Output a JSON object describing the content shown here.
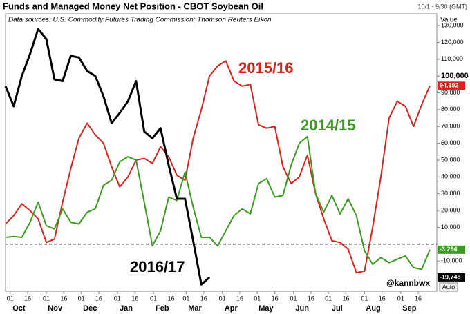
{
  "chart_data": {
    "type": "line",
    "title": "Funds and Managed Money Net Position - CBOT Soybean Oil",
    "subtitle": "Data sources: U.S. Commodity Futures Trading Commission; Thomson Reuters Eikon",
    "date_range": "10/1 - 9/30 (GMT)",
    "y_axis_label": "Value",
    "credit": "@kannbwx",
    "scale_button": "Auto",
    "x": [
      -4,
      3,
      10,
      17,
      24,
      31,
      38,
      45,
      52,
      59,
      66,
      73,
      80,
      87,
      94,
      101,
      108,
      115,
      122,
      129,
      136,
      143,
      150,
      157,
      164,
      171,
      178,
      185,
      192,
      199,
      206,
      213,
      220,
      227,
      234,
      241,
      248,
      255,
      262,
      269,
      276,
      283,
      290,
      297,
      304,
      311,
      318,
      325,
      332,
      339,
      346,
      353,
      360
    ],
    "xlim": [
      -4,
      366
    ],
    "xticks": [
      {
        "value": 0,
        "label": "01"
      },
      {
        "value": 15,
        "label": "16"
      },
      {
        "value": 31,
        "label": "01"
      },
      {
        "value": 46,
        "label": "16"
      },
      {
        "value": 61,
        "label": "01"
      },
      {
        "value": 76,
        "label": "16"
      },
      {
        "value": 92,
        "label": "01"
      },
      {
        "value": 107,
        "label": "16"
      },
      {
        "value": 123,
        "label": "01"
      },
      {
        "value": 138,
        "label": "16"
      },
      {
        "value": 151,
        "label": "01"
      },
      {
        "value": 166,
        "label": "16"
      },
      {
        "value": 182,
        "label": "01"
      },
      {
        "value": 197,
        "label": "16"
      },
      {
        "value": 212,
        "label": "01"
      },
      {
        "value": 227,
        "label": "16"
      },
      {
        "value": 243,
        "label": "01"
      },
      {
        "value": 258,
        "label": "16"
      },
      {
        "value": 273,
        "label": "01"
      },
      {
        "value": 288,
        "label": "16"
      },
      {
        "value": 304,
        "label": "01"
      },
      {
        "value": 319,
        "label": "16"
      },
      {
        "value": 335,
        "label": "01"
      },
      {
        "value": 350,
        "label": "16"
      }
    ],
    "months": [
      "Oct",
      "Nov",
      "Dec",
      "Jan",
      "Feb",
      "Mar",
      "Apr",
      "May",
      "Jun",
      "Jul",
      "Aug",
      "Sep"
    ],
    "ylim": [
      -28000,
      137000
    ],
    "yticks": [
      {
        "value": -10000,
        "label": "-10,000"
      },
      {
        "value": 10000,
        "label": "10,000"
      },
      {
        "value": 20000,
        "label": "20,000"
      },
      {
        "value": 30000,
        "label": "30,000"
      },
      {
        "value": 40000,
        "label": "40,000"
      },
      {
        "value": 50000,
        "label": "50,000"
      },
      {
        "value": 60000,
        "label": "60,000"
      },
      {
        "value": 70000,
        "label": "70,000"
      },
      {
        "value": 80000,
        "label": "80,000"
      },
      {
        "value": 90000,
        "label": "90,000"
      },
      {
        "value": 100000,
        "label": "100,000"
      },
      {
        "value": 110000,
        "label": "110,000"
      },
      {
        "value": 120000,
        "label": "120,000"
      },
      {
        "value": 130000,
        "label": "130,000"
      }
    ],
    "series": [
      {
        "name": "2015/16",
        "color": "#e0201b",
        "values": [
          12000,
          17000,
          24000,
          20000,
          15000,
          1000,
          3000,
          25000,
          45000,
          63000,
          72000,
          65000,
          60000,
          46000,
          34000,
          40000,
          50000,
          51000,
          48000,
          58000,
          52000,
          41000,
          38000,
          63000,
          80000,
          100000,
          106000,
          109000,
          97000,
          94000,
          95000,
          71000,
          69000,
          70000,
          46000,
          36000,
          40000,
          53000,
          30000,
          15000,
          2000,
          1000,
          -3000,
          -17000,
          -16000,
          10000,
          40000,
          75000,
          85000,
          82000,
          70000,
          83000,
          94192
        ],
        "value_labels": [
          null,
          null,
          null,
          null,
          null,
          null,
          null,
          null,
          null,
          null,
          null,
          null,
          null,
          null,
          null,
          null,
          null,
          null,
          null,
          null,
          null,
          null,
          null,
          null,
          null,
          null,
          null,
          null,
          null,
          null,
          null,
          null,
          null,
          null,
          null,
          null,
          null,
          null,
          null,
          null,
          null,
          null,
          null,
          null,
          null,
          null,
          null,
          null,
          null,
          null,
          null,
          null,
          "94,192"
        ]
      },
      {
        "name": "2014/15",
        "color": "#3a9c1f",
        "values": [
          4000,
          4500,
          4000,
          13000,
          25000,
          11000,
          9000,
          21000,
          13000,
          12000,
          19000,
          21000,
          35000,
          38000,
          49000,
          52000,
          50000,
          25000,
          -1000,
          8000,
          28000,
          26000,
          43000,
          22000,
          4000,
          4000,
          -1000,
          8000,
          17000,
          21000,
          18000,
          36000,
          39000,
          28000,
          29000,
          47000,
          60000,
          64000,
          30000,
          19000,
          29000,
          18000,
          27000,
          17000,
          -4000,
          -12000,
          -8000,
          -11000,
          -9000,
          -7000,
          -14000,
          -15000,
          -3294
        ],
        "value_labels": [
          null,
          null,
          null,
          null,
          null,
          null,
          null,
          null,
          null,
          null,
          null,
          null,
          null,
          null,
          null,
          null,
          null,
          null,
          null,
          null,
          null,
          null,
          null,
          null,
          null,
          null,
          null,
          null,
          null,
          null,
          null,
          null,
          null,
          null,
          null,
          null,
          null,
          null,
          null,
          null,
          null,
          null,
          null,
          null,
          null,
          null,
          null,
          null,
          null,
          null,
          null,
          null,
          "-3,294"
        ]
      },
      {
        "name": "2016/17",
        "color": "#000000",
        "values": [
          94000,
          82000,
          100000,
          113000,
          128000,
          122000,
          98000,
          97000,
          112000,
          111000,
          103000,
          100000,
          88000,
          72000,
          78000,
          85000,
          97000,
          67000,
          63000,
          69000,
          47000,
          27000,
          27000,
          2000,
          -24000,
          -19748,
          null,
          null,
          null,
          null,
          null,
          null,
          null,
          null,
          null,
          null,
          null,
          null,
          null,
          null,
          null,
          null,
          null,
          null,
          null,
          null,
          null,
          null,
          null,
          null,
          null,
          null,
          null
        ],
        "value_labels": [
          null,
          null,
          null,
          null,
          null,
          null,
          null,
          null,
          null,
          null,
          null,
          null,
          null,
          null,
          null,
          null,
          null,
          null,
          null,
          null,
          null,
          null,
          null,
          null,
          null,
          "-19,748",
          null,
          null,
          null,
          null,
          null,
          null,
          null,
          null,
          null,
          null,
          null,
          null,
          null,
          null,
          null,
          null,
          null,
          null,
          null,
          null,
          null,
          null,
          null,
          null,
          null,
          null,
          null
        ]
      }
    ]
  }
}
